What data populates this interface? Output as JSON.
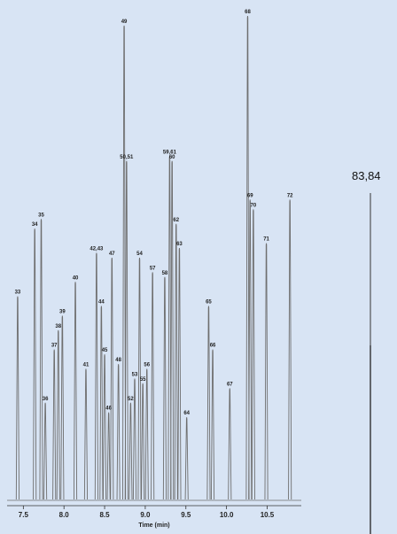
{
  "chart_data": {
    "type": "line",
    "xlabel": "Time (min)",
    "xticks": [
      7.5,
      8.0,
      8.5,
      9.0,
      9.5,
      10.0,
      10.5
    ],
    "xlim": [
      7.3,
      10.92
    ],
    "ylim": [
      0,
      100
    ],
    "grid": false,
    "line_color": "#6e6e6e",
    "peaks": [
      {
        "label": "33",
        "x": 7.43,
        "y": 42
      },
      {
        "label": "34",
        "x": 7.64,
        "y": 56
      },
      {
        "label": "35",
        "x": 7.72,
        "y": 58
      },
      {
        "label": "36",
        "x": 7.77,
        "y": 20
      },
      {
        "label": "37",
        "x": 7.88,
        "y": 31
      },
      {
        "label": "38",
        "x": 7.93,
        "y": 35
      },
      {
        "label": "39",
        "x": 7.98,
        "y": 38
      },
      {
        "label": "40",
        "x": 8.14,
        "y": 45
      },
      {
        "label": "41",
        "x": 8.27,
        "y": 27
      },
      {
        "label": "42,43",
        "x": 8.4,
        "y": 51
      },
      {
        "label": "44",
        "x": 8.46,
        "y": 40
      },
      {
        "label": "45",
        "x": 8.5,
        "y": 30
      },
      {
        "label": "46",
        "x": 8.55,
        "y": 18
      },
      {
        "label": "47",
        "x": 8.59,
        "y": 50
      },
      {
        "label": "48",
        "x": 8.67,
        "y": 28
      },
      {
        "label": "49",
        "x": 8.74,
        "y": 98
      },
      {
        "label": "50,51",
        "x": 8.77,
        "y": 70
      },
      {
        "label": "52",
        "x": 8.82,
        "y": 20
      },
      {
        "label": "53",
        "x": 8.87,
        "y": 25
      },
      {
        "label": "54",
        "x": 8.93,
        "y": 50
      },
      {
        "label": "55",
        "x": 8.97,
        "y": 24
      },
      {
        "label": "56",
        "x": 9.02,
        "y": 27
      },
      {
        "label": "57",
        "x": 9.09,
        "y": 47
      },
      {
        "label": "58",
        "x": 9.24,
        "y": 46
      },
      {
        "label": "59,61",
        "x": 9.3,
        "y": 71
      },
      {
        "label": "60",
        "x": 9.33,
        "y": 70
      },
      {
        "label": "62",
        "x": 9.38,
        "y": 57
      },
      {
        "label": "63",
        "x": 9.42,
        "y": 52
      },
      {
        "label": "64",
        "x": 9.51,
        "y": 17
      },
      {
        "label": "65",
        "x": 9.78,
        "y": 40
      },
      {
        "label": "66",
        "x": 9.83,
        "y": 31
      },
      {
        "label": "67",
        "x": 10.04,
        "y": 23
      },
      {
        "label": "68",
        "x": 10.26,
        "y": 100
      },
      {
        "label": "69",
        "x": 10.29,
        "y": 62
      },
      {
        "label": "70",
        "x": 10.33,
        "y": 60
      },
      {
        "label": "71",
        "x": 10.49,
        "y": 53
      },
      {
        "label": "72",
        "x": 10.78,
        "y": 62
      }
    ]
  },
  "side_label": "83,84"
}
